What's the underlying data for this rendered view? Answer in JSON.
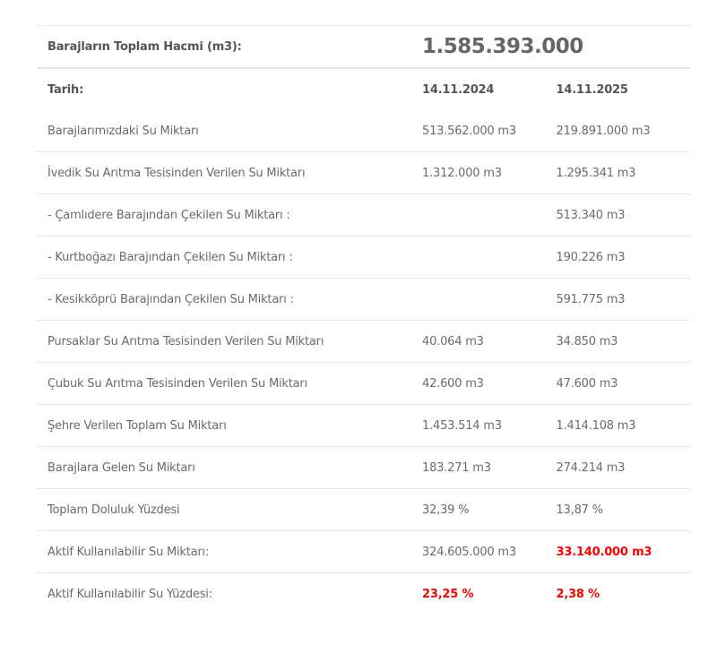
{
  "total": {
    "label": "Barajların Toplam Hacmi (m3):",
    "value": "1.585.393.000"
  },
  "header": {
    "label": "Tarih:",
    "date1": "14.11.2024",
    "date2": "14.11.2025"
  },
  "rows": [
    {
      "label": "Barajlarımızdaki Su Miktarı",
      "v1": "513.562.000 m3",
      "v2": "219.891.000 m3"
    },
    {
      "label": "İvedik Su Arıtma Tesisinden Verilen Su Miktarı",
      "v1": "1.312.000 m3",
      "v2": "1.295.341 m3"
    },
    {
      "label": "- Çamlıdere Barajından Çekilen Su Miktarı :",
      "v1": "",
      "v2": "513.340 m3"
    },
    {
      "label": "- Kurtboğazı Barajından Çekilen Su Miktarı :",
      "v1": "",
      "v2": "190.226 m3"
    },
    {
      "label": "- Kesikköprü Barajından Çekilen Su Miktarı :",
      "v1": "",
      "v2": "591.775 m3"
    },
    {
      "label": "Pursaklar Su Arıtma Tesisinden Verilen Su Miktarı",
      "v1": "40.064 m3",
      "v2": "34.850 m3"
    },
    {
      "label": "Çubuk Su Arıtma Tesisinden Verilen Su Miktarı",
      "v1": "42.600 m3",
      "v2": "47.600 m3"
    },
    {
      "label": "Şehre Verilen Toplam Su Miktarı",
      "v1": "1.453.514 m3",
      "v2": "1.414.108 m3"
    },
    {
      "label": "Barajlara Gelen Su Miktarı",
      "v1": "183.271 m3",
      "v2": "274.214 m3"
    },
    {
      "label": "Toplam Doluluk Yüzdesi",
      "v1": "32,39 %",
      "v2": "13,87 %"
    },
    {
      "label": "Aktif Kullanılabilir Su Miktarı:",
      "v1": "324.605.000 m3",
      "v2": "33.140.000 m3"
    },
    {
      "label": "Aktif Kullanılabilir Su Yüzdesi:",
      "v1": "23,25 %",
      "v2": "2,38 %"
    }
  ],
  "colors": {
    "alert": "#ff0000",
    "text": "#6b6b6b"
  }
}
